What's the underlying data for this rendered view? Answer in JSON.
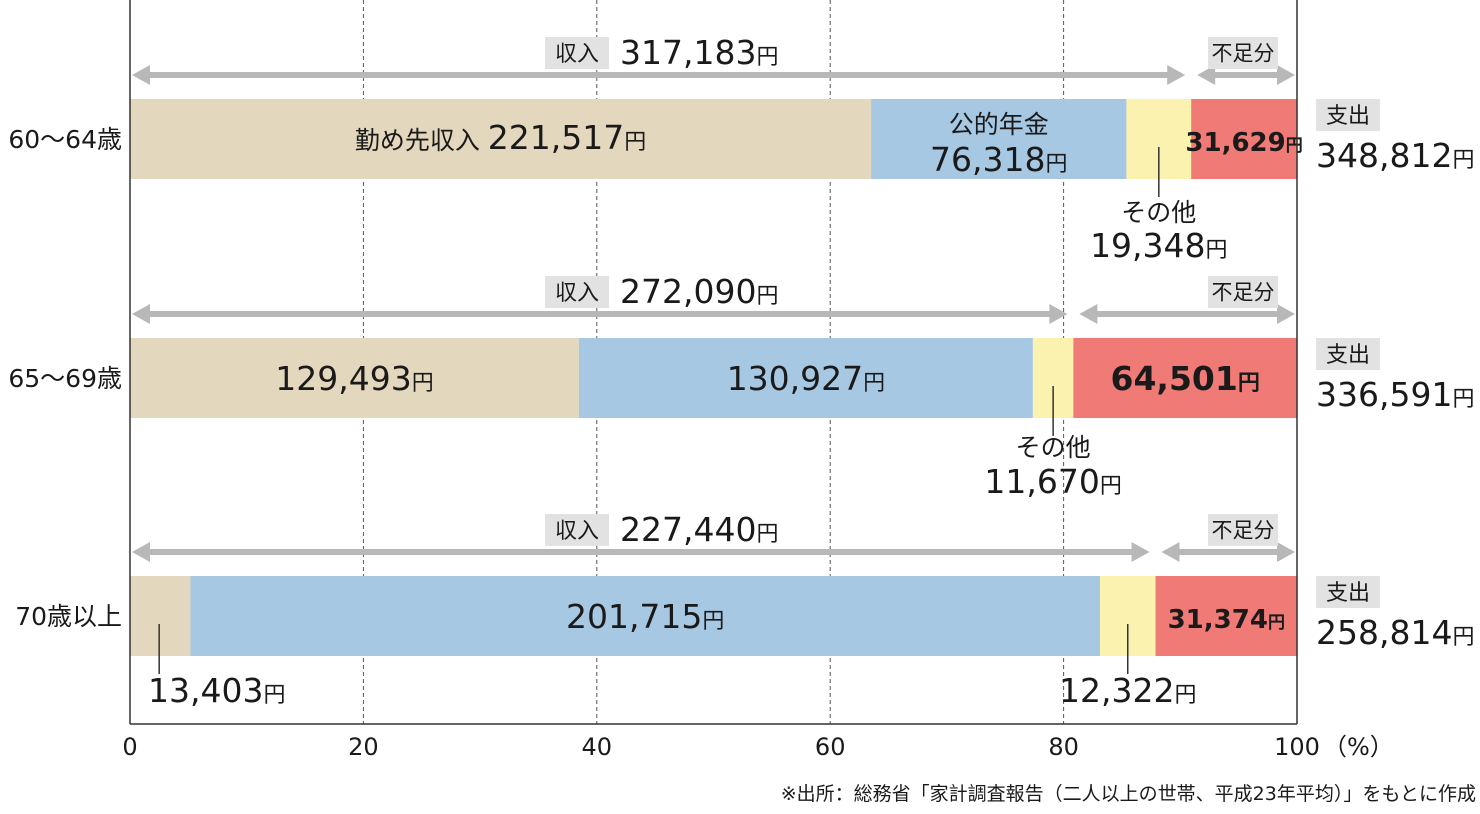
{
  "chart_data": {
    "type": "bar",
    "orientation": "horizontal",
    "stacked": true,
    "xlim": [
      0,
      100
    ],
    "xticks": [
      "0",
      "20",
      "40",
      "60",
      "80",
      "100"
    ],
    "x_unit_label": "（%）",
    "grid": "vertical dashed lines at 20, 40, 60, 80",
    "colors": {
      "employment": "#e3d7bd",
      "pension": "#a7c8e3",
      "other": "#fbf2b0",
      "shortfall": "#f07a76",
      "arrow": "#b8b8b8",
      "label_bg": "#e2e2e2"
    },
    "rows": [
      {
        "category": "60～64歳",
        "income_tag": "収入",
        "income_value": "317,183",
        "shortfall_tag": "不足分",
        "spend_tag": "支出",
        "spend_value": "348,812",
        "segments": [
          {
            "key": "employment",
            "value": 221517,
            "name": "勤め先収入",
            "label": "221,517"
          },
          {
            "key": "pension",
            "value": 76318,
            "name": "公的年金",
            "label": "76,318"
          },
          {
            "key": "other",
            "value": 19348,
            "name": "その他",
            "label": "19,348"
          },
          {
            "key": "shortfall",
            "value": 31629,
            "label": "31,629"
          }
        ]
      },
      {
        "category": "65～69歳",
        "income_tag": "収入",
        "income_value": "272,090",
        "shortfall_tag": "不足分",
        "spend_tag": "支出",
        "spend_value": "336,591",
        "segments": [
          {
            "key": "employment",
            "value": 129493,
            "label": "129,493"
          },
          {
            "key": "pension",
            "value": 130927,
            "label": "130,927"
          },
          {
            "key": "other",
            "value": 11670,
            "name": "その他",
            "label": "11,670"
          },
          {
            "key": "shortfall",
            "value": 64501,
            "label": "64,501"
          }
        ]
      },
      {
        "category": "70歳以上",
        "income_tag": "収入",
        "income_value": "227,440",
        "shortfall_tag": "不足分",
        "spend_tag": "支出",
        "spend_value": "258,814",
        "segments": [
          {
            "key": "employment",
            "value": 13403,
            "label": "13,403"
          },
          {
            "key": "pension",
            "value": 201715,
            "label": "201,715"
          },
          {
            "key": "other",
            "value": 12322,
            "label": "12,322"
          },
          {
            "key": "shortfall",
            "value": 31374,
            "label": "31,374"
          }
        ]
      }
    ],
    "yen": "円",
    "source": "※出所：総務省「家計調査報告（二人以上の世帯、平成23年平均）」をもとに作成"
  }
}
